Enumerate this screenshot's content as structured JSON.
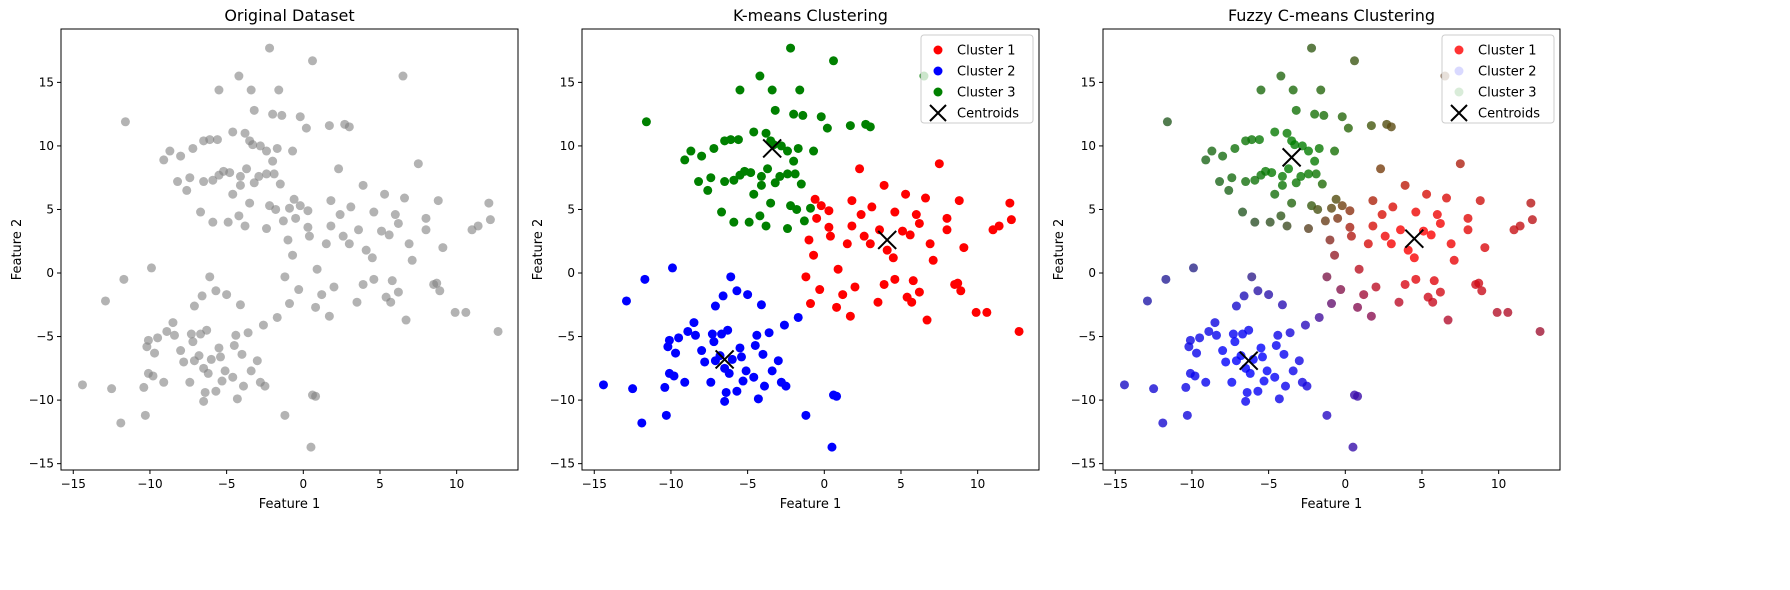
{
  "colors": {
    "gray": "#808080",
    "cluster1": "#ff0000",
    "cluster2": "#0000ff",
    "cluster3": "#008000",
    "centroid": "#000000",
    "legend_frame": "#cccccc"
  },
  "x_ticks": [
    "−15",
    "−10",
    "−5",
    "0",
    "5",
    "10"
  ],
  "y_ticks": [
    "−15",
    "−10",
    "−5",
    "0",
    "5",
    "10",
    "15"
  ],
  "chart_data": [
    {
      "type": "scatter",
      "title": "Original Dataset",
      "xlabel": "Feature 1",
      "ylabel": "Feature 2",
      "xlim": [
        -15.8,
        14.0
      ],
      "ylim": [
        -15.5,
        19.2
      ],
      "grid": false,
      "legend": null,
      "point_color": "#808080",
      "point_alpha": 0.6,
      "clusters": [
        [
          [
            7.5,
            8.6
          ],
          [
            2.3,
            8.2
          ],
          [
            3.9,
            6.9
          ],
          [
            6.6,
            5.9
          ],
          [
            5.3,
            6.2
          ],
          [
            1.8,
            5.7
          ],
          [
            -0.6,
            5.8
          ],
          [
            3.1,
            5.2
          ],
          [
            4.6,
            4.8
          ],
          [
            6.0,
            4.6
          ],
          [
            8.0,
            4.3
          ],
          [
            8.8,
            5.7
          ],
          [
            12.1,
            5.5
          ],
          [
            12.2,
            4.2
          ],
          [
            -0.5,
            4.3
          ],
          [
            0.3,
            3.6
          ],
          [
            1.8,
            3.7
          ],
          [
            3.6,
            3.4
          ],
          [
            5.1,
            3.3
          ],
          [
            5.6,
            3.0
          ],
          [
            6.2,
            3.9
          ],
          [
            8.0,
            3.4
          ],
          [
            11.0,
            3.4
          ],
          [
            11.4,
            3.7
          ],
          [
            0.4,
            2.9
          ],
          [
            1.5,
            2.3
          ],
          [
            3.0,
            2.3
          ],
          [
            4.1,
            1.8
          ],
          [
            6.9,
            2.3
          ],
          [
            9.1,
            2.0
          ],
          [
            2.6,
            2.9
          ],
          [
            -1.0,
            2.6
          ],
          [
            -0.7,
            1.4
          ],
          [
            0.9,
            0.3
          ],
          [
            -1.2,
            -0.3
          ],
          [
            4.6,
            -0.5
          ],
          [
            5.8,
            -0.6
          ],
          [
            3.9,
            -0.9
          ],
          [
            2.0,
            -1.1
          ],
          [
            6.2,
            -1.5
          ],
          [
            -0.3,
            -1.3
          ],
          [
            1.2,
            -1.7
          ],
          [
            -0.9,
            -2.4
          ],
          [
            3.5,
            -2.3
          ],
          [
            5.7,
            -2.3
          ],
          [
            8.7,
            -0.8
          ],
          [
            8.5,
            -0.9
          ],
          [
            5.4,
            -1.9
          ],
          [
            0.8,
            -2.7
          ],
          [
            1.7,
            -3.4
          ],
          [
            6.7,
            -3.7
          ],
          [
            9.9,
            -3.1
          ],
          [
            10.6,
            -3.1
          ],
          [
            12.7,
            -4.6
          ],
          [
            -0.2,
            5.3
          ],
          [
            0.3,
            4.9
          ],
          [
            2.4,
            4.6
          ],
          [
            7.1,
            1.0
          ],
          [
            8.9,
            -1.4
          ],
          [
            4.5,
            1.2
          ]
        ],
        [
          [
            -9.9,
            0.4
          ],
          [
            -11.7,
            -0.5
          ],
          [
            -12.9,
            -2.2
          ],
          [
            -6.1,
            -0.3
          ],
          [
            -7.1,
            -2.6
          ],
          [
            -5.7,
            -1.4
          ],
          [
            -5.0,
            -1.7
          ],
          [
            -4.1,
            -2.5
          ],
          [
            -6.6,
            -1.8
          ],
          [
            -8.5,
            -3.9
          ],
          [
            -9.5,
            -5.1
          ],
          [
            -10.1,
            -5.3
          ],
          [
            -10.2,
            -5.8
          ],
          [
            -9.7,
            -6.3
          ],
          [
            -8.4,
            -4.9
          ],
          [
            -7.3,
            -4.8
          ],
          [
            -7.2,
            -5.4
          ],
          [
            -6.7,
            -4.8
          ],
          [
            -6.3,
            -4.5
          ],
          [
            -4.4,
            -4.9
          ],
          [
            -3.6,
            -4.7
          ],
          [
            -2.6,
            -4.1
          ],
          [
            -1.7,
            -3.5
          ],
          [
            -8.0,
            -6.1
          ],
          [
            -6.8,
            -6.5
          ],
          [
            -6.0,
            -6.8
          ],
          [
            -5.4,
            -6.6
          ],
          [
            -4.0,
            -6.4
          ],
          [
            -3.0,
            -6.9
          ],
          [
            -10.1,
            -7.9
          ],
          [
            -9.8,
            -8.1
          ],
          [
            -9.1,
            -8.6
          ],
          [
            -7.4,
            -8.6
          ],
          [
            -6.5,
            -7.5
          ],
          [
            -5.1,
            -7.7
          ],
          [
            -4.6,
            -8.2
          ],
          [
            -3.9,
            -8.9
          ],
          [
            -2.8,
            -8.6
          ],
          [
            -2.5,
            -8.9
          ],
          [
            -6.5,
            -10.1
          ],
          [
            -6.4,
            -9.4
          ],
          [
            -5.7,
            -9.3
          ],
          [
            -4.3,
            -9.9
          ],
          [
            -14.4,
            -8.8
          ],
          [
            -12.5,
            -9.1
          ],
          [
            -10.4,
            -9.0
          ],
          [
            -10.3,
            -11.2
          ],
          [
            -11.9,
            -11.8
          ],
          [
            -1.2,
            -11.2
          ],
          [
            0.6,
            -9.6
          ],
          [
            0.8,
            -9.7
          ],
          [
            0.5,
            -13.7
          ],
          [
            -7.1,
            -6.9
          ],
          [
            -6.2,
            -7.9
          ],
          [
            -5.3,
            -8.5
          ],
          [
            -4.5,
            -5.7
          ],
          [
            -3.4,
            -7.7
          ],
          [
            -7.8,
            -7.0
          ],
          [
            -8.9,
            -4.6
          ],
          [
            -5.5,
            -5.9
          ]
        ],
        [
          [
            -2.2,
            17.7
          ],
          [
            0.6,
            16.7
          ],
          [
            -4.2,
            15.5
          ],
          [
            -5.5,
            14.4
          ],
          [
            -3.4,
            14.4
          ],
          [
            -1.6,
            14.4
          ],
          [
            6.5,
            15.5
          ],
          [
            -3.2,
            12.8
          ],
          [
            -2.0,
            12.5
          ],
          [
            -1.4,
            12.4
          ],
          [
            -0.2,
            12.3
          ],
          [
            0.2,
            11.4
          ],
          [
            1.7,
            11.6
          ],
          [
            2.7,
            11.7
          ],
          [
            3.0,
            11.5
          ],
          [
            -11.6,
            11.9
          ],
          [
            -4.6,
            11.1
          ],
          [
            -3.8,
            11.0
          ],
          [
            -3.5,
            10.4
          ],
          [
            -2.8,
            10.0
          ],
          [
            -5.6,
            10.5
          ],
          [
            -6.1,
            10.5
          ],
          [
            -6.5,
            10.4
          ],
          [
            -7.2,
            9.8
          ],
          [
            -8.0,
            9.2
          ],
          [
            -8.7,
            9.6
          ],
          [
            -9.1,
            8.9
          ],
          [
            -3.3,
            10.1
          ],
          [
            -2.4,
            9.6
          ],
          [
            -1.7,
            9.8
          ],
          [
            -0.7,
            9.6
          ],
          [
            -2.0,
            8.8
          ],
          [
            -3.7,
            8.2
          ],
          [
            -2.9,
            7.6
          ],
          [
            -4.1,
            7.6
          ],
          [
            -4.8,
            7.9
          ],
          [
            -5.2,
            8.0
          ],
          [
            -5.5,
            7.7
          ],
          [
            -5.9,
            7.3
          ],
          [
            -6.5,
            7.2
          ],
          [
            -7.4,
            7.5
          ],
          [
            -7.6,
            6.5
          ],
          [
            -8.2,
            7.2
          ],
          [
            -4.1,
            6.9
          ],
          [
            -3.2,
            7.1
          ],
          [
            -2.4,
            7.8
          ],
          [
            -1.9,
            7.8
          ],
          [
            -1.5,
            7.0
          ],
          [
            -4.6,
            6.2
          ],
          [
            -3.5,
            5.5
          ],
          [
            -2.2,
            5.3
          ],
          [
            -1.8,
            5.0
          ],
          [
            -0.9,
            5.1
          ],
          [
            -6.7,
            4.8
          ],
          [
            -4.2,
            4.5
          ],
          [
            -5.9,
            4.0
          ],
          [
            -4.9,
            4.0
          ],
          [
            -1.3,
            4.1
          ],
          [
            -2.4,
            3.5
          ],
          [
            -3.8,
            3.7
          ]
        ]
      ]
    },
    {
      "type": "scatter",
      "title": "K-means Clustering",
      "xlabel": "Feature 1",
      "ylabel": "Feature 2",
      "xlim": [
        -15.8,
        14.0
      ],
      "ylim": [
        -15.5,
        19.2
      ],
      "grid": false,
      "legend": "top-right",
      "series": [
        {
          "name": "Cluster 1",
          "color": "#ff0000"
        },
        {
          "name": "Cluster 2",
          "color": "#0000ff"
        },
        {
          "name": "Cluster 3",
          "color": "#008000"
        }
      ],
      "centroids_label": "Centroids",
      "centroids": [
        [
          4.1,
          2.6
        ],
        [
          -6.5,
          -6.8
        ],
        [
          -3.4,
          9.8
        ]
      ]
    },
    {
      "type": "scatter",
      "title": "Fuzzy C-means Clustering",
      "xlabel": "Feature 1",
      "ylabel": "Feature 2",
      "xlim": [
        -15.8,
        14.0
      ],
      "ylim": [
        -15.5,
        19.2
      ],
      "grid": false,
      "legend": "top-right",
      "series": [
        {
          "name": "Cluster 1",
          "color": "#ff0000"
        },
        {
          "name": "Cluster 2",
          "color": "#0000ff"
        },
        {
          "name": "Cluster 3",
          "color": "#008000"
        }
      ],
      "centroids_label": "Centroids",
      "centroids": [
        [
          4.5,
          2.7
        ],
        [
          -6.3,
          -6.9
        ],
        [
          -3.5,
          9.1
        ]
      ]
    }
  ]
}
